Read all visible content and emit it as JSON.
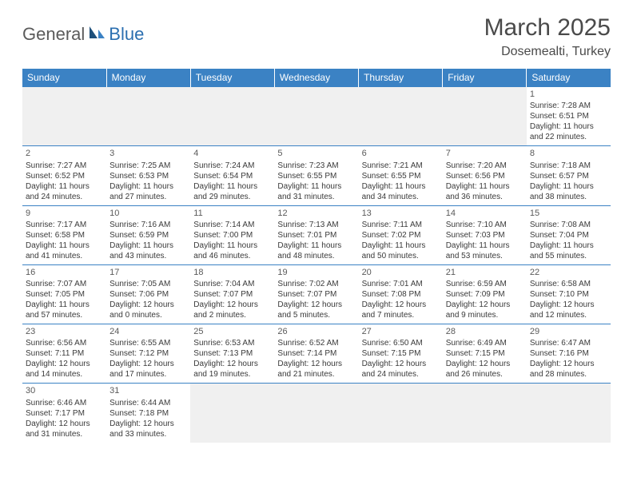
{
  "logo": {
    "general": "General",
    "blue": "Blue"
  },
  "title": "March 2025",
  "location": "Dosemealti, Turkey",
  "header_bg": "#3b82c4",
  "header_text": "#ffffff",
  "border_color": "#3b82c4",
  "empty_bg": "#f0f0f0",
  "text_color": "#3a3a3a",
  "days": [
    "Sunday",
    "Monday",
    "Tuesday",
    "Wednesday",
    "Thursday",
    "Friday",
    "Saturday"
  ],
  "weeks": [
    [
      null,
      null,
      null,
      null,
      null,
      null,
      {
        "n": "1",
        "sr": "Sunrise: 7:28 AM",
        "ss": "Sunset: 6:51 PM",
        "dl": "Daylight: 11 hours and 22 minutes."
      }
    ],
    [
      {
        "n": "2",
        "sr": "Sunrise: 7:27 AM",
        "ss": "Sunset: 6:52 PM",
        "dl": "Daylight: 11 hours and 24 minutes."
      },
      {
        "n": "3",
        "sr": "Sunrise: 7:25 AM",
        "ss": "Sunset: 6:53 PM",
        "dl": "Daylight: 11 hours and 27 minutes."
      },
      {
        "n": "4",
        "sr": "Sunrise: 7:24 AM",
        "ss": "Sunset: 6:54 PM",
        "dl": "Daylight: 11 hours and 29 minutes."
      },
      {
        "n": "5",
        "sr": "Sunrise: 7:23 AM",
        "ss": "Sunset: 6:55 PM",
        "dl": "Daylight: 11 hours and 31 minutes."
      },
      {
        "n": "6",
        "sr": "Sunrise: 7:21 AM",
        "ss": "Sunset: 6:55 PM",
        "dl": "Daylight: 11 hours and 34 minutes."
      },
      {
        "n": "7",
        "sr": "Sunrise: 7:20 AM",
        "ss": "Sunset: 6:56 PM",
        "dl": "Daylight: 11 hours and 36 minutes."
      },
      {
        "n": "8",
        "sr": "Sunrise: 7:18 AM",
        "ss": "Sunset: 6:57 PM",
        "dl": "Daylight: 11 hours and 38 minutes."
      }
    ],
    [
      {
        "n": "9",
        "sr": "Sunrise: 7:17 AM",
        "ss": "Sunset: 6:58 PM",
        "dl": "Daylight: 11 hours and 41 minutes."
      },
      {
        "n": "10",
        "sr": "Sunrise: 7:16 AM",
        "ss": "Sunset: 6:59 PM",
        "dl": "Daylight: 11 hours and 43 minutes."
      },
      {
        "n": "11",
        "sr": "Sunrise: 7:14 AM",
        "ss": "Sunset: 7:00 PM",
        "dl": "Daylight: 11 hours and 46 minutes."
      },
      {
        "n": "12",
        "sr": "Sunrise: 7:13 AM",
        "ss": "Sunset: 7:01 PM",
        "dl": "Daylight: 11 hours and 48 minutes."
      },
      {
        "n": "13",
        "sr": "Sunrise: 7:11 AM",
        "ss": "Sunset: 7:02 PM",
        "dl": "Daylight: 11 hours and 50 minutes."
      },
      {
        "n": "14",
        "sr": "Sunrise: 7:10 AM",
        "ss": "Sunset: 7:03 PM",
        "dl": "Daylight: 11 hours and 53 minutes."
      },
      {
        "n": "15",
        "sr": "Sunrise: 7:08 AM",
        "ss": "Sunset: 7:04 PM",
        "dl": "Daylight: 11 hours and 55 minutes."
      }
    ],
    [
      {
        "n": "16",
        "sr": "Sunrise: 7:07 AM",
        "ss": "Sunset: 7:05 PM",
        "dl": "Daylight: 11 hours and 57 minutes."
      },
      {
        "n": "17",
        "sr": "Sunrise: 7:05 AM",
        "ss": "Sunset: 7:06 PM",
        "dl": "Daylight: 12 hours and 0 minutes."
      },
      {
        "n": "18",
        "sr": "Sunrise: 7:04 AM",
        "ss": "Sunset: 7:07 PM",
        "dl": "Daylight: 12 hours and 2 minutes."
      },
      {
        "n": "19",
        "sr": "Sunrise: 7:02 AM",
        "ss": "Sunset: 7:07 PM",
        "dl": "Daylight: 12 hours and 5 minutes."
      },
      {
        "n": "20",
        "sr": "Sunrise: 7:01 AM",
        "ss": "Sunset: 7:08 PM",
        "dl": "Daylight: 12 hours and 7 minutes."
      },
      {
        "n": "21",
        "sr": "Sunrise: 6:59 AM",
        "ss": "Sunset: 7:09 PM",
        "dl": "Daylight: 12 hours and 9 minutes."
      },
      {
        "n": "22",
        "sr": "Sunrise: 6:58 AM",
        "ss": "Sunset: 7:10 PM",
        "dl": "Daylight: 12 hours and 12 minutes."
      }
    ],
    [
      {
        "n": "23",
        "sr": "Sunrise: 6:56 AM",
        "ss": "Sunset: 7:11 PM",
        "dl": "Daylight: 12 hours and 14 minutes."
      },
      {
        "n": "24",
        "sr": "Sunrise: 6:55 AM",
        "ss": "Sunset: 7:12 PM",
        "dl": "Daylight: 12 hours and 17 minutes."
      },
      {
        "n": "25",
        "sr": "Sunrise: 6:53 AM",
        "ss": "Sunset: 7:13 PM",
        "dl": "Daylight: 12 hours and 19 minutes."
      },
      {
        "n": "26",
        "sr": "Sunrise: 6:52 AM",
        "ss": "Sunset: 7:14 PM",
        "dl": "Daylight: 12 hours and 21 minutes."
      },
      {
        "n": "27",
        "sr": "Sunrise: 6:50 AM",
        "ss": "Sunset: 7:15 PM",
        "dl": "Daylight: 12 hours and 24 minutes."
      },
      {
        "n": "28",
        "sr": "Sunrise: 6:49 AM",
        "ss": "Sunset: 7:15 PM",
        "dl": "Daylight: 12 hours and 26 minutes."
      },
      {
        "n": "29",
        "sr": "Sunrise: 6:47 AM",
        "ss": "Sunset: 7:16 PM",
        "dl": "Daylight: 12 hours and 28 minutes."
      }
    ],
    [
      {
        "n": "30",
        "sr": "Sunrise: 6:46 AM",
        "ss": "Sunset: 7:17 PM",
        "dl": "Daylight: 12 hours and 31 minutes."
      },
      {
        "n": "31",
        "sr": "Sunrise: 6:44 AM",
        "ss": "Sunset: 7:18 PM",
        "dl": "Daylight: 12 hours and 33 minutes."
      },
      null,
      null,
      null,
      null,
      null
    ]
  ]
}
